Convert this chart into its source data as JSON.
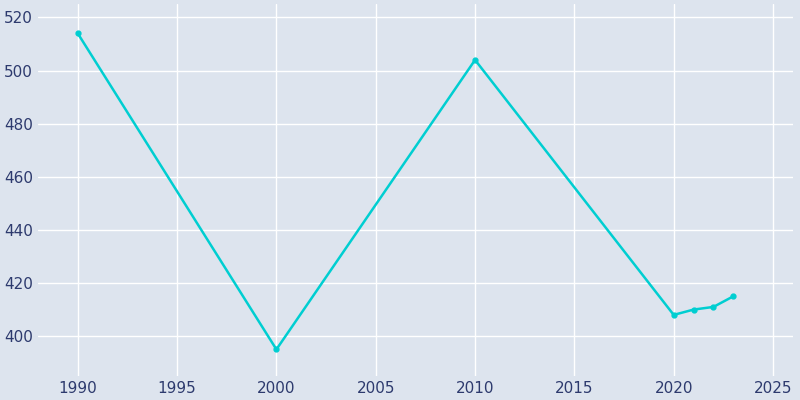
{
  "years": [
    1990,
    2000,
    2010,
    2020,
    2021,
    2022,
    2023
  ],
  "population": [
    514,
    395,
    504,
    408,
    410,
    411,
    415
  ],
  "line_color": "#00CED1",
  "marker_color": "#00CED1",
  "background_color": "#dde4ee",
  "plot_background_color": "#dde4ee",
  "xlim": [
    1988,
    2026
  ],
  "ylim": [
    385,
    525
  ],
  "yticks": [
    400,
    420,
    440,
    460,
    480,
    500,
    520
  ],
  "xticks": [
    1990,
    1995,
    2000,
    2005,
    2010,
    2015,
    2020,
    2025
  ],
  "grid_color": "#ffffff",
  "tick_label_color": "#2d3a6e",
  "tick_label_fontsize": 11
}
